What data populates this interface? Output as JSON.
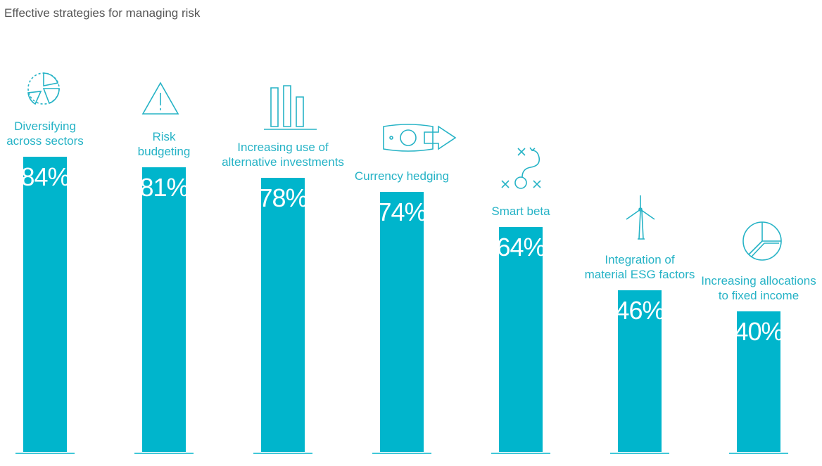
{
  "chart_data": {
    "type": "bar",
    "title": "Effective strategies for managing risk",
    "categories": [
      "Diversifying\nacross sectors",
      "Risk\nbudgeting",
      "Increasing use of\nalternative investments",
      "Currency hedging",
      "Smart beta",
      "Integration of\nmaterial ESG factors",
      "Increasing allocations\nto fixed income"
    ],
    "values": [
      84,
      81,
      78,
      74,
      64,
      46,
      40
    ],
    "value_labels": [
      "84%",
      "81%",
      "78%",
      "74%",
      "64%",
      "46%",
      "40%"
    ],
    "color": "#00b5cc",
    "ylim": [
      0,
      100
    ]
  }
}
